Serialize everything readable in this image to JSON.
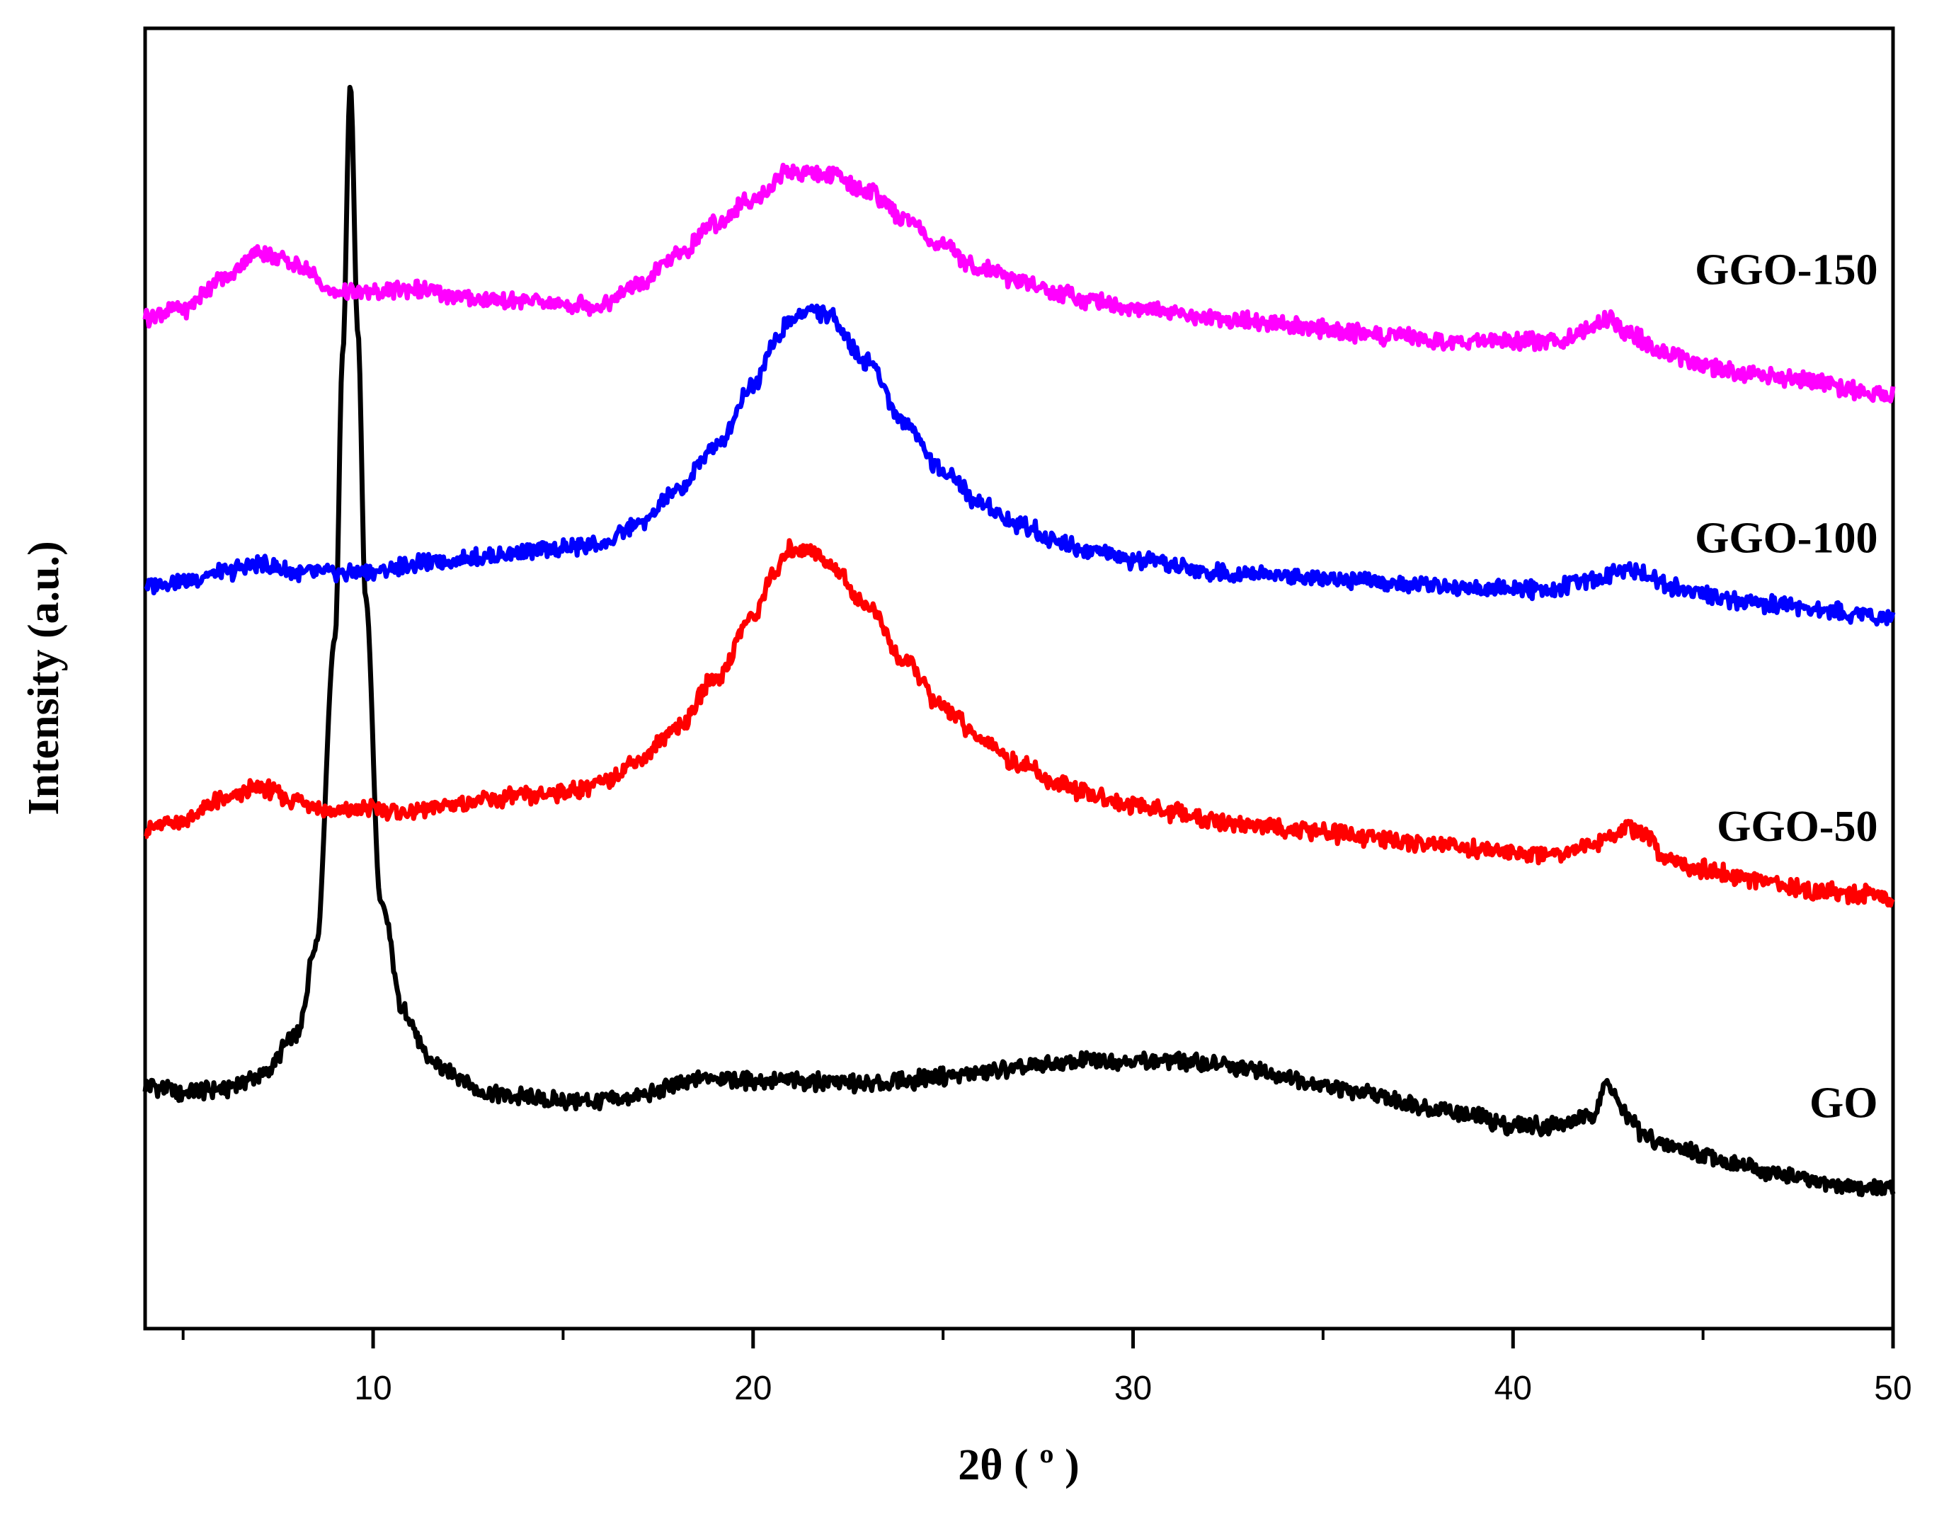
{
  "chart_data": {
    "type": "line",
    "title": "",
    "xlabel": "2θ ( º )",
    "ylabel": "Intensity (a.u.)",
    "xlim": [
      4,
      50
    ],
    "ylim": [
      0,
      3.2
    ],
    "x_major_ticks": [
      10,
      20,
      30,
      40,
      50
    ],
    "x_minor_ticks": [
      5,
      15,
      25,
      35,
      45
    ],
    "x_tick_labels": [
      "10",
      "20",
      "30",
      "40",
      "50"
    ],
    "y_ticks_visible": false,
    "grid": false,
    "series": [
      {
        "name": "GO",
        "label": "GO",
        "color": "#000000",
        "offset": 0.0,
        "label_anchor": {
          "x": 45.5,
          "y": 0.52
        },
        "points": [
          [
            4,
            0.6
          ],
          [
            5,
            0.58
          ],
          [
            6,
            0.59
          ],
          [
            7,
            0.62
          ],
          [
            8,
            0.72
          ],
          [
            8.5,
            0.95
          ],
          [
            9,
            1.7
          ],
          [
            9.2,
            2.4
          ],
          [
            9.4,
            3.06
          ],
          [
            9.6,
            2.45
          ],
          [
            9.8,
            1.8
          ],
          [
            10.2,
            1.05
          ],
          [
            10.8,
            0.78
          ],
          [
            11.5,
            0.66
          ],
          [
            12,
            0.63
          ],
          [
            13,
            0.58
          ],
          [
            14,
            0.57
          ],
          [
            15,
            0.56
          ],
          [
            16,
            0.56
          ],
          [
            17,
            0.57
          ],
          [
            18,
            0.6
          ],
          [
            19,
            0.62
          ],
          [
            20,
            0.61
          ],
          [
            21,
            0.61
          ],
          [
            22,
            0.61
          ],
          [
            23,
            0.6
          ],
          [
            24,
            0.61
          ],
          [
            25,
            0.62
          ],
          [
            26,
            0.63
          ],
          [
            27,
            0.64
          ],
          [
            28,
            0.65
          ],
          [
            29,
            0.66
          ],
          [
            30,
            0.66
          ],
          [
            31,
            0.66
          ],
          [
            32,
            0.65
          ],
          [
            33,
            0.64
          ],
          [
            34,
            0.62
          ],
          [
            35,
            0.6
          ],
          [
            36,
            0.58
          ],
          [
            37,
            0.56
          ],
          [
            38,
            0.54
          ],
          [
            39,
            0.52
          ],
          [
            40,
            0.5
          ],
          [
            41,
            0.5
          ],
          [
            42,
            0.52
          ],
          [
            42.5,
            0.6
          ],
          [
            43,
            0.52
          ],
          [
            43.5,
            0.47
          ],
          [
            44,
            0.45
          ],
          [
            45,
            0.43
          ],
          [
            46,
            0.4
          ],
          [
            47,
            0.38
          ],
          [
            48,
            0.36
          ],
          [
            49,
            0.35
          ],
          [
            50,
            0.34
          ]
        ]
      },
      {
        "name": "GGO-50",
        "label": "GGO-50",
        "color": "#ff0000",
        "offset": 0.0,
        "label_anchor": {
          "x": 45.5,
          "y": 1.2
        },
        "points": [
          [
            4,
            1.23
          ],
          [
            5,
            1.25
          ],
          [
            6,
            1.3
          ],
          [
            7,
            1.33
          ],
          [
            8,
            1.3
          ],
          [
            9,
            1.27
          ],
          [
            10,
            1.28
          ],
          [
            11,
            1.27
          ],
          [
            12,
            1.29
          ],
          [
            13,
            1.3
          ],
          [
            14,
            1.31
          ],
          [
            15,
            1.32
          ],
          [
            16,
            1.34
          ],
          [
            17,
            1.4
          ],
          [
            18,
            1.48
          ],
          [
            19,
            1.6
          ],
          [
            20,
            1.75
          ],
          [
            20.5,
            1.85
          ],
          [
            21,
            1.92
          ],
          [
            21.5,
            1.92
          ],
          [
            22,
            1.88
          ],
          [
            23,
            1.78
          ],
          [
            24,
            1.64
          ],
          [
            25,
            1.53
          ],
          [
            26,
            1.45
          ],
          [
            27,
            1.39
          ],
          [
            28,
            1.34
          ],
          [
            29,
            1.31
          ],
          [
            30,
            1.29
          ],
          [
            31,
            1.27
          ],
          [
            32,
            1.25
          ],
          [
            33,
            1.24
          ],
          [
            34,
            1.23
          ],
          [
            35,
            1.22
          ],
          [
            36,
            1.21
          ],
          [
            37,
            1.2
          ],
          [
            38,
            1.19
          ],
          [
            39,
            1.18
          ],
          [
            40,
            1.17
          ],
          [
            41,
            1.17
          ],
          [
            42,
            1.19
          ],
          [
            43,
            1.23
          ],
          [
            43.5,
            1.21
          ],
          [
            44,
            1.16
          ],
          [
            45,
            1.13
          ],
          [
            46,
            1.11
          ],
          [
            47,
            1.09
          ],
          [
            48,
            1.08
          ],
          [
            49,
            1.07
          ],
          [
            50,
            1.06
          ]
        ]
      },
      {
        "name": "GGO-100",
        "label": "GGO-100",
        "color": "#0000ff",
        "offset": 0.0,
        "label_anchor": {
          "x": 45.5,
          "y": 1.91
        },
        "points": [
          [
            4,
            1.83
          ],
          [
            5,
            1.84
          ],
          [
            6,
            1.86
          ],
          [
            7,
            1.88
          ],
          [
            8,
            1.86
          ],
          [
            9,
            1.86
          ],
          [
            10,
            1.86
          ],
          [
            11,
            1.88
          ],
          [
            12,
            1.89
          ],
          [
            13,
            1.9
          ],
          [
            14,
            1.91
          ],
          [
            15,
            1.92
          ],
          [
            16,
            1.93
          ],
          [
            17,
            1.98
          ],
          [
            18,
            2.06
          ],
          [
            19,
            2.17
          ],
          [
            20,
            2.32
          ],
          [
            20.5,
            2.42
          ],
          [
            21,
            2.48
          ],
          [
            21.5,
            2.51
          ],
          [
            22,
            2.49
          ],
          [
            23,
            2.38
          ],
          [
            24,
            2.23
          ],
          [
            25,
            2.11
          ],
          [
            26,
            2.03
          ],
          [
            27,
            1.98
          ],
          [
            28,
            1.94
          ],
          [
            29,
            1.91
          ],
          [
            30,
            1.89
          ],
          [
            31,
            1.88
          ],
          [
            32,
            1.86
          ],
          [
            33,
            1.86
          ],
          [
            34,
            1.85
          ],
          [
            35,
            1.85
          ],
          [
            36,
            1.84
          ],
          [
            37,
            1.83
          ],
          [
            38,
            1.83
          ],
          [
            39,
            1.82
          ],
          [
            40,
            1.82
          ],
          [
            41,
            1.82
          ],
          [
            42,
            1.84
          ],
          [
            43,
            1.87
          ],
          [
            43.5,
            1.86
          ],
          [
            44,
            1.83
          ],
          [
            45,
            1.81
          ],
          [
            46,
            1.79
          ],
          [
            47,
            1.78
          ],
          [
            48,
            1.77
          ],
          [
            49,
            1.76
          ],
          [
            50,
            1.75
          ]
        ]
      },
      {
        "name": "GGO-150",
        "label": "GGO-150",
        "color": "#ff00ff",
        "offset": 0.0,
        "label_anchor": {
          "x": 45.5,
          "y": 2.57
        },
        "points": [
          [
            4,
            2.49
          ],
          [
            5,
            2.51
          ],
          [
            6,
            2.58
          ],
          [
            7,
            2.65
          ],
          [
            8,
            2.62
          ],
          [
            9,
            2.55
          ],
          [
            10,
            2.55
          ],
          [
            11,
            2.56
          ],
          [
            12,
            2.54
          ],
          [
            13,
            2.53
          ],
          [
            14,
            2.53
          ],
          [
            15,
            2.52
          ],
          [
            16,
            2.52
          ],
          [
            17,
            2.57
          ],
          [
            18,
            2.64
          ],
          [
            19,
            2.72
          ],
          [
            20,
            2.78
          ],
          [
            21,
            2.85
          ],
          [
            22,
            2.84
          ],
          [
            23,
            2.8
          ],
          [
            24,
            2.73
          ],
          [
            25,
            2.66
          ],
          [
            26,
            2.61
          ],
          [
            27,
            2.58
          ],
          [
            28,
            2.55
          ],
          [
            29,
            2.53
          ],
          [
            30,
            2.51
          ],
          [
            31,
            2.5
          ],
          [
            32,
            2.49
          ],
          [
            33,
            2.48
          ],
          [
            34,
            2.47
          ],
          [
            35,
            2.46
          ],
          [
            36,
            2.45
          ],
          [
            37,
            2.44
          ],
          [
            38,
            2.43
          ],
          [
            39,
            2.43
          ],
          [
            40,
            2.43
          ],
          [
            41,
            2.43
          ],
          [
            42,
            2.46
          ],
          [
            42.5,
            2.49
          ],
          [
            43,
            2.45
          ],
          [
            44,
            2.4
          ],
          [
            45,
            2.37
          ],
          [
            46,
            2.35
          ],
          [
            47,
            2.34
          ],
          [
            48,
            2.33
          ],
          [
            49,
            2.31
          ],
          [
            50,
            2.3
          ]
        ]
      }
    ]
  }
}
